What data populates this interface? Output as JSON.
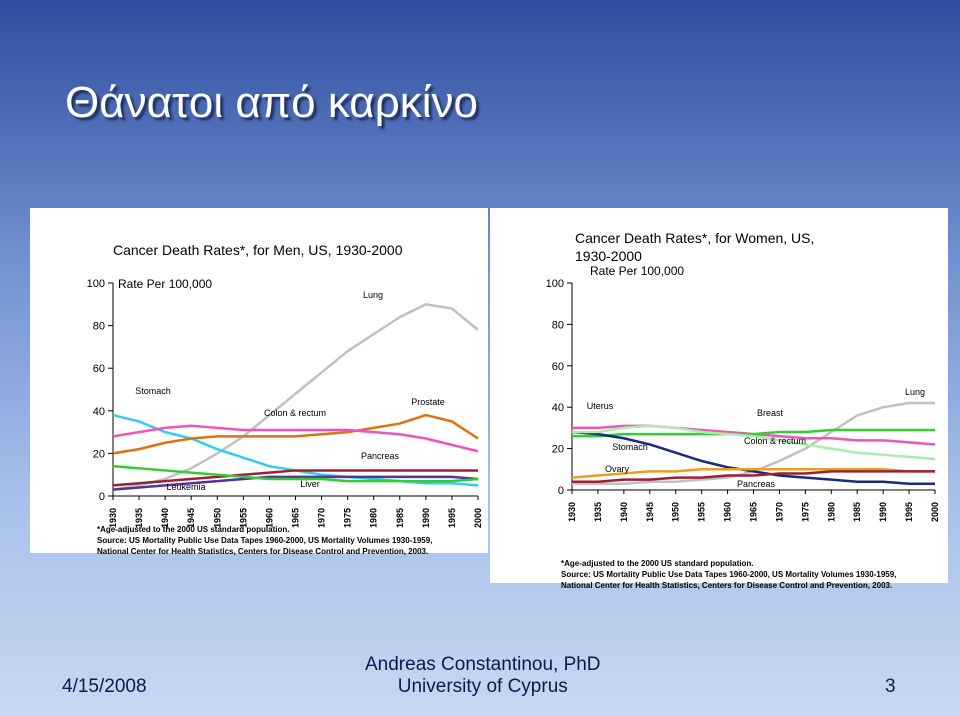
{
  "slide": {
    "title": "Θάνατοι από καρκίνο",
    "date": "4/15/2008",
    "author": "Andreas Constantinou, PhD",
    "affiliation": "University of Cyprus",
    "page": "3"
  },
  "chart_data": [
    {
      "type": "line",
      "title": "Cancer Death Rates*, for Men, US, 1930-2000",
      "y_label": "Rate Per 100,000",
      "x": [
        1930,
        1935,
        1940,
        1945,
        1950,
        1955,
        1960,
        1965,
        1970,
        1975,
        1980,
        1985,
        1990,
        1995,
        2000
      ],
      "xlim": [
        1930,
        2000
      ],
      "xticks": [
        1930,
        1935,
        1940,
        1945,
        1950,
        1955,
        1960,
        1965,
        1970,
        1975,
        1980,
        1985,
        1990,
        1995,
        2000
      ],
      "ylim": [
        0,
        100
      ],
      "yticks": [
        0,
        20,
        40,
        60,
        80,
        100
      ],
      "series": [
        {
          "name": "Lung",
          "color": "#c0c0c0",
          "values": [
            3,
            5,
            8,
            13,
            20,
            28,
            38,
            48,
            58,
            68,
            76,
            84,
            90,
            88,
            78
          ]
        },
        {
          "name": "Stomach",
          "color": "#33ccee",
          "values": [
            38,
            35,
            30,
            27,
            22,
            18,
            14,
            12,
            10,
            9,
            8,
            7,
            6,
            6,
            5
          ]
        },
        {
          "name": "Prostate",
          "color": "#e07010",
          "values": [
            20,
            22,
            25,
            27,
            28,
            28,
            28,
            28,
            29,
            30,
            32,
            34,
            38,
            35,
            27
          ]
        },
        {
          "name": "Colon & rectum",
          "color": "#ee55bb",
          "values": [
            28,
            30,
            32,
            33,
            32,
            31,
            31,
            31,
            31,
            31,
            30,
            29,
            27,
            24,
            21
          ]
        },
        {
          "name": "Pancreas",
          "color": "#992233",
          "values": [
            5,
            6,
            7,
            8,
            9,
            10,
            11,
            12,
            12,
            12,
            12,
            12,
            12,
            12,
            12
          ]
        },
        {
          "name": "Leukemia",
          "color": "#553399",
          "values": [
            3,
            4,
            5,
            6,
            7,
            8,
            9,
            9,
            9,
            9,
            9,
            9,
            9,
            9,
            8
          ]
        },
        {
          "name": "Liver",
          "color": "#33cc33",
          "values": [
            14,
            13,
            12,
            11,
            10,
            9,
            8,
            8,
            8,
            7,
            7,
            7,
            7,
            7,
            8
          ]
        }
      ],
      "notes": [
        "*Age-adjusted to the 2000 US standard population.",
        "Source: US Mortality Public Use Data Tapes 1960-2000, US Mortality Volumes 1930-1959,",
        "National Center for Health Statistics, Centers for Disease Control and Prevention, 2003."
      ]
    },
    {
      "type": "line",
      "title": "Cancer Death Rates*, for Women, US, 1930-2000",
      "y_label": "Rate Per 100,000",
      "x": [
        1930,
        1935,
        1940,
        1945,
        1950,
        1955,
        1960,
        1965,
        1970,
        1975,
        1980,
        1985,
        1990,
        1995,
        2000
      ],
      "xlim": [
        1930,
        2000
      ],
      "xticks": [
        1930,
        1935,
        1940,
        1945,
        1950,
        1955,
        1960,
        1965,
        1970,
        1975,
        1980,
        1985,
        1990,
        1995,
        2000
      ],
      "ylim": [
        0,
        100
      ],
      "yticks": [
        0,
        20,
        40,
        60,
        80,
        100
      ],
      "series": [
        {
          "name": "Lung",
          "color": "#c0c0c0",
          "values": [
            3,
            3,
            3,
            4,
            4,
            5,
            6,
            9,
            14,
            20,
            28,
            36,
            40,
            42,
            42
          ]
        },
        {
          "name": "Uterus",
          "color": "#ee55bb",
          "values": [
            30,
            30,
            31,
            31,
            30,
            29,
            28,
            27,
            26,
            25,
            25,
            24,
            24,
            23,
            22
          ]
        },
        {
          "name": "Breast",
          "color": "#33cc33",
          "values": [
            26,
            26,
            27,
            27,
            27,
            27,
            27,
            27,
            28,
            28,
            29,
            29,
            29,
            29,
            29
          ]
        },
        {
          "name": "Stomach",
          "color": "#1a2a80",
          "values": [
            28,
            27,
            25,
            22,
            18,
            14,
            11,
            9,
            7,
            6,
            5,
            4,
            4,
            3,
            3
          ]
        },
        {
          "name": "Colon & rectum",
          "color": "#aaeeaa",
          "values": [
            28,
            28,
            30,
            31,
            30,
            28,
            27,
            26,
            24,
            22,
            20,
            18,
            17,
            16,
            15
          ]
        },
        {
          "name": "Ovary",
          "color": "#e8a020",
          "values": [
            6,
            7,
            8,
            9,
            9,
            10,
            10,
            10,
            10,
            10,
            10,
            10,
            10,
            9,
            9
          ]
        },
        {
          "name": "Pancreas",
          "color": "#992233",
          "values": [
            4,
            4,
            5,
            5,
            6,
            6,
            7,
            7,
            8,
            8,
            9,
            9,
            9,
            9,
            9
          ]
        }
      ],
      "notes": [
        "*Age-adjusted to the 2000 US standard population.",
        "Source:  US Mortality Public Use Data Tapes 1960-2000, US Mortality Volumes 1930-1959,",
        "National Center for Health Statistics, Centers for Disease Control and Prevention, 2003."
      ]
    }
  ]
}
